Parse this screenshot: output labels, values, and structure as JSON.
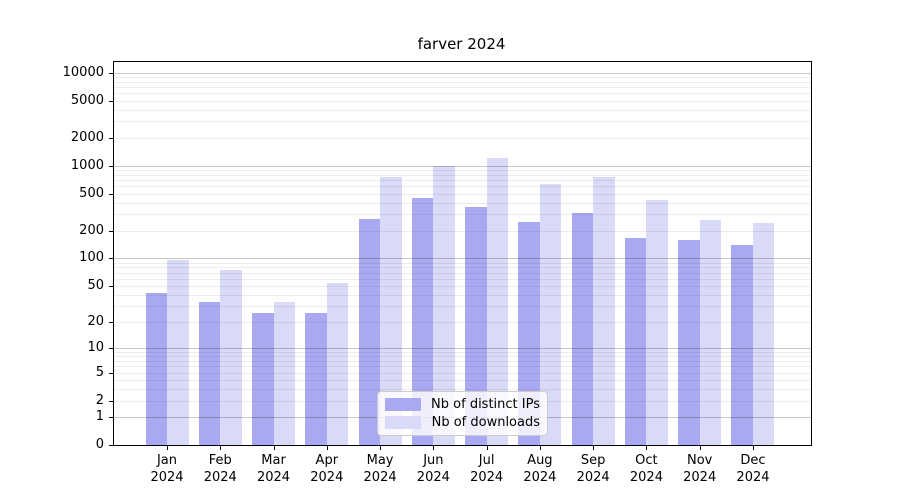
{
  "title": "farver 2024",
  "legend": {
    "items": [
      {
        "label": "Nb of distinct IPs",
        "color": "#a9a9f1"
      },
      {
        "label": "Nb of downloads",
        "color": "#d9d9f8"
      }
    ]
  },
  "chart_data": {
    "type": "bar",
    "title": "farver 2024",
    "categories": [
      "Jan",
      "Feb",
      "Mar",
      "Apr",
      "May",
      "Jun",
      "Jul",
      "Aug",
      "Sep",
      "Oct",
      "Nov",
      "Dec"
    ],
    "year_label": "2024",
    "series": [
      {
        "name": "Nb of distinct IPs",
        "color": "#a9a9f1",
        "values": [
          42,
          33,
          25,
          25,
          270,
          450,
          360,
          250,
          310,
          165,
          160,
          140
        ]
      },
      {
        "name": "Nb of downloads",
        "color": "#d9d9f8",
        "values": [
          95,
          75,
          33,
          54,
          750,
          980,
          1200,
          640,
          750,
          425,
          260,
          240
        ]
      }
    ],
    "yscale": "symlog",
    "yticks": [
      0,
      1,
      2,
      5,
      10,
      20,
      50,
      100,
      200,
      500,
      1000,
      2000,
      5000,
      10000
    ],
    "ylim": [
      0,
      13000
    ],
    "xlabel": "",
    "ylabel": "",
    "grid": true,
    "legend_position": "lower center"
  }
}
